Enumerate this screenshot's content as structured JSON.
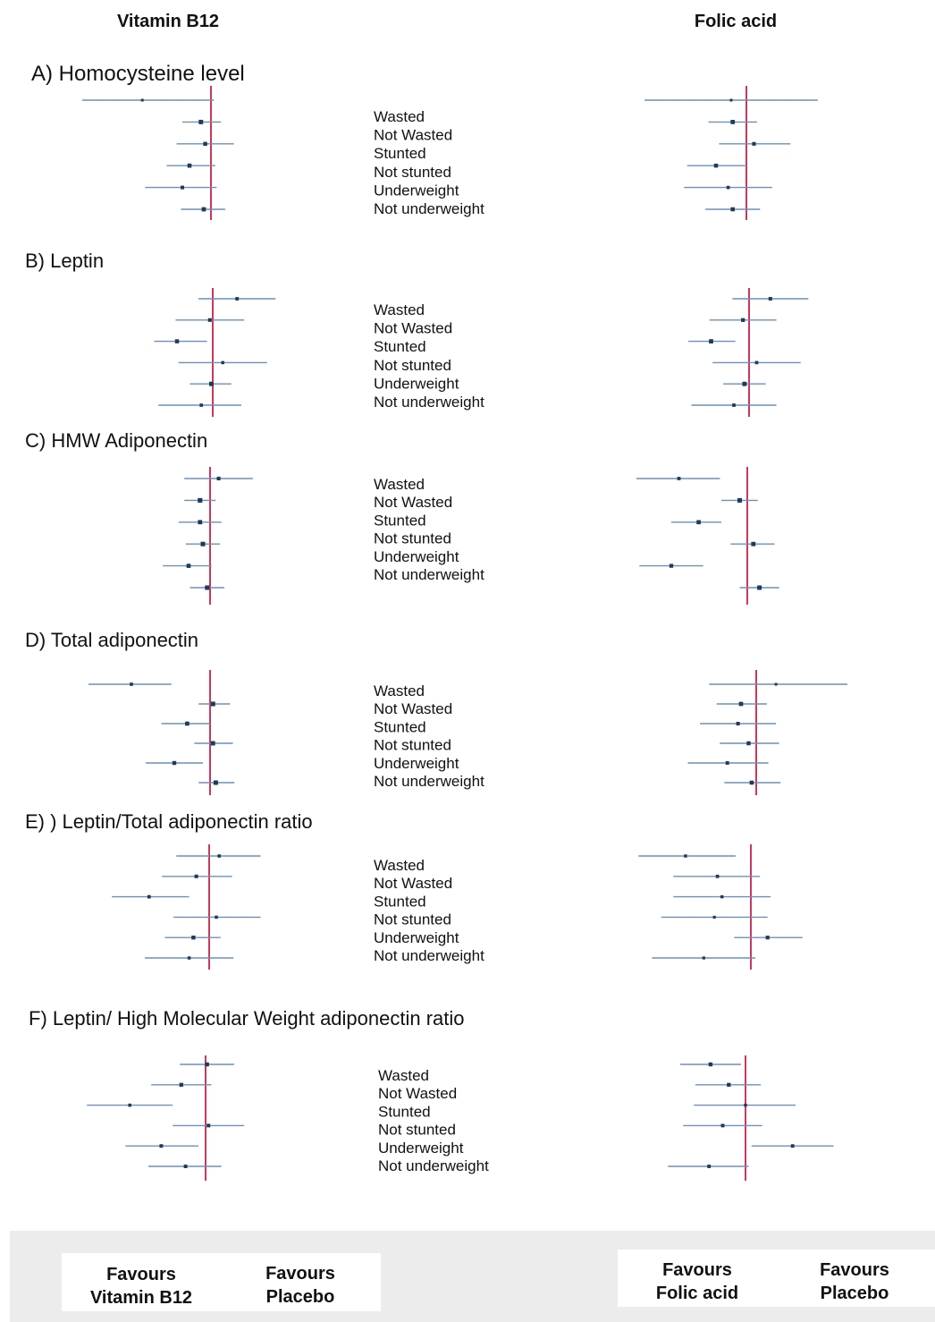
{
  "headers": {
    "left": "Vitamin B12",
    "right": "Folic acid"
  },
  "legend": {
    "left_treatment": [
      "Favours",
      "Vitamin B12"
    ],
    "left_placebo": [
      "Favours",
      "Placebo"
    ],
    "right_treatment": [
      "Favours",
      "Folic acid"
    ],
    "right_placebo": [
      "Favours",
      "Placebo"
    ]
  },
  "colors": {
    "null_line": "#c8385a",
    "ci": "#6f8fb4",
    "point": "#1f3a5a"
  },
  "chart_data": [
    {
      "type": "forest",
      "title": "A) Homocysteine level",
      "categories": [
        "Wasted",
        "Not Wasted",
        "Stunted",
        "Not stunted",
        "Underweight",
        "Not underweight"
      ],
      "series": [
        {
          "name": "Vitamin B12",
          "estimate": [
            -0.48,
            -0.07,
            -0.04,
            -0.15,
            -0.2,
            -0.05
          ],
          "lower": [
            -0.9,
            -0.2,
            -0.24,
            -0.31,
            -0.46,
            -0.21
          ],
          "upper": [
            0.02,
            0.07,
            0.16,
            0.03,
            0.04,
            0.1
          ]
        },
        {
          "name": "Folic acid",
          "estimate": [
            -0.1,
            -0.09,
            0.05,
            -0.2,
            -0.12,
            -0.09
          ],
          "lower": [
            -0.67,
            -0.25,
            -0.18,
            -0.39,
            -0.41,
            -0.27
          ],
          "upper": [
            0.47,
            0.07,
            0.29,
            0.0,
            0.17,
            0.09
          ]
        }
      ]
    },
    {
      "type": "forest",
      "title": "B) Leptin",
      "categories": [
        "Wasted",
        "Not Wasted",
        "Stunted",
        "Not stunted",
        "Underweight",
        "Not underweight"
      ],
      "series": [
        {
          "name": "Vitamin B12",
          "estimate": [
            0.17,
            -0.02,
            -0.25,
            0.07,
            -0.01,
            -0.08
          ],
          "lower": [
            -0.1,
            -0.26,
            -0.41,
            -0.24,
            -0.16,
            -0.38
          ],
          "upper": [
            0.44,
            0.22,
            -0.04,
            0.38,
            0.13,
            0.2
          ]
        },
        {
          "name": "Folic acid",
          "estimate": [
            0.14,
            -0.04,
            -0.25,
            0.05,
            -0.03,
            -0.1
          ],
          "lower": [
            -0.11,
            -0.26,
            -0.4,
            -0.24,
            -0.17,
            -0.38
          ],
          "upper": [
            0.39,
            0.18,
            -0.09,
            0.34,
            0.11,
            0.18
          ]
        }
      ]
    },
    {
      "type": "forest",
      "title": "C) HMW Adiponectin",
      "categories": [
        "Wasted",
        "Not Wasted",
        "Stunted",
        "Not stunted",
        "Underweight",
        "Not underweight"
      ],
      "series": [
        {
          "name": "Vitamin B12",
          "estimate": [
            0.06,
            -0.07,
            -0.07,
            -0.05,
            -0.15,
            -0.02
          ],
          "lower": [
            -0.18,
            -0.18,
            -0.22,
            -0.17,
            -0.33,
            -0.14
          ],
          "upper": [
            0.3,
            0.04,
            0.08,
            0.07,
            0.01,
            0.1
          ]
        },
        {
          "name": "Folic acid",
          "estimate": [
            -0.45,
            -0.05,
            -0.32,
            0.04,
            -0.5,
            0.08
          ],
          "lower": [
            -0.73,
            -0.17,
            -0.5,
            -0.11,
            -0.71,
            -0.05
          ],
          "upper": [
            -0.18,
            0.07,
            -0.17,
            0.18,
            -0.29,
            0.21
          ]
        }
      ]
    },
    {
      "type": "forest",
      "title": "D) Total adiponectin",
      "categories": [
        "Wasted",
        "Not Wasted",
        "Stunted",
        "Not stunted",
        "Underweight",
        "Not underweight"
      ],
      "series": [
        {
          "name": "Vitamin B12",
          "estimate": [
            -0.55,
            0.02,
            -0.16,
            0.02,
            -0.25,
            0.04
          ],
          "lower": [
            -0.85,
            -0.08,
            -0.34,
            -0.11,
            -0.45,
            -0.08
          ],
          "upper": [
            -0.27,
            0.14,
            0.0,
            0.16,
            -0.05,
            0.17
          ]
        },
        {
          "name": "Folic acid",
          "estimate": [
            0.13,
            -0.1,
            -0.12,
            -0.05,
            -0.19,
            -0.03
          ],
          "lower": [
            -0.31,
            -0.26,
            -0.37,
            -0.24,
            -0.45,
            -0.21
          ],
          "upper": [
            0.6,
            0.07,
            0.13,
            0.15,
            0.08,
            0.16
          ]
        }
      ]
    },
    {
      "type": "forest",
      "title": "E) ) Leptin/Total adiponectin ratio",
      "categories": [
        "Wasted",
        "Not Wasted",
        "Stunted",
        "Not stunted",
        "Underweight",
        "Not underweight"
      ],
      "series": [
        {
          "name": "Vitamin B12",
          "estimate": [
            0.07,
            -0.09,
            -0.42,
            0.05,
            -0.11,
            -0.14
          ],
          "lower": [
            -0.23,
            -0.33,
            -0.68,
            -0.25,
            -0.31,
            -0.45
          ],
          "upper": [
            0.36,
            0.16,
            -0.14,
            0.36,
            0.08,
            0.17
          ]
        },
        {
          "name": "Folic acid",
          "estimate": [
            -0.43,
            -0.22,
            -0.19,
            -0.24,
            0.11,
            -0.31
          ],
          "lower": [
            -0.74,
            -0.51,
            -0.51,
            -0.59,
            -0.11,
            -0.65
          ],
          "upper": [
            -0.1,
            0.06,
            0.13,
            0.11,
            0.34,
            0.03
          ]
        }
      ]
    },
    {
      "type": "forest",
      "title": "F) Leptin/ High Molecular Weight adiponectin ratio",
      "categories": [
        "Wasted",
        "Not Wasted",
        "Stunted",
        "Not stunted",
        "Underweight",
        "Not underweight"
      ],
      "series": [
        {
          "name": "Vitamin B12",
          "estimate": [
            0.01,
            -0.17,
            -0.53,
            0.02,
            -0.31,
            -0.14
          ],
          "lower": [
            -0.18,
            -0.38,
            -0.83,
            -0.23,
            -0.56,
            -0.4
          ],
          "upper": [
            0.2,
            0.04,
            -0.23,
            0.27,
            -0.05,
            0.11
          ]
        },
        {
          "name": "Folic acid",
          "estimate": [
            -0.23,
            -0.11,
            0.0,
            -0.15,
            0.31,
            -0.24
          ],
          "lower": [
            -0.43,
            -0.33,
            -0.34,
            -0.41,
            0.04,
            -0.51
          ],
          "upper": [
            -0.03,
            0.1,
            0.33,
            0.11,
            0.58,
            0.02
          ]
        }
      ]
    }
  ]
}
